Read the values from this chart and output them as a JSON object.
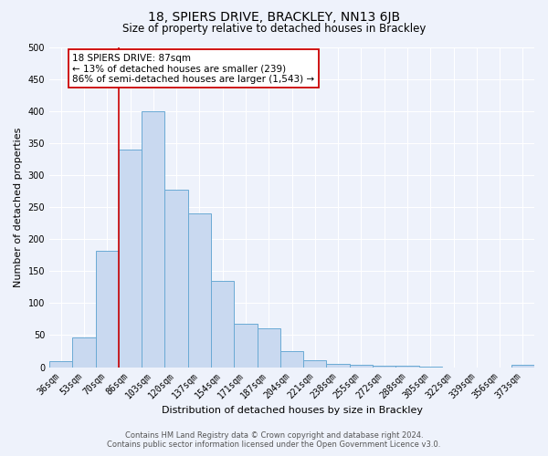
{
  "title": "18, SPIERS DRIVE, BRACKLEY, NN13 6JB",
  "subtitle": "Size of property relative to detached houses in Brackley",
  "xlabel": "Distribution of detached houses by size in Brackley",
  "ylabel": "Number of detached properties",
  "categories": [
    "36sqm",
    "53sqm",
    "70sqm",
    "86sqm",
    "103sqm",
    "120sqm",
    "137sqm",
    "154sqm",
    "171sqm",
    "187sqm",
    "204sqm",
    "221sqm",
    "238sqm",
    "255sqm",
    "272sqm",
    "288sqm",
    "305sqm",
    "322sqm",
    "339sqm",
    "356sqm",
    "373sqm"
  ],
  "values": [
    10,
    47,
    182,
    340,
    400,
    277,
    240,
    135,
    68,
    60,
    25,
    11,
    5,
    3,
    2,
    2,
    1,
    0,
    0,
    0,
    3
  ],
  "bar_color": "#c9d9f0",
  "bar_edge_color": "#6aaad4",
  "vline_color": "#cc0000",
  "annotation_line1": "18 SPIERS DRIVE: 87sqm",
  "annotation_line2": "← 13% of detached houses are smaller (239)",
  "annotation_line3": "86% of semi-detached houses are larger (1,543) →",
  "annotation_box_color": "#cc0000",
  "ylim": [
    0,
    500
  ],
  "yticks": [
    0,
    50,
    100,
    150,
    200,
    250,
    300,
    350,
    400,
    450,
    500
  ],
  "footer_line1": "Contains HM Land Registry data © Crown copyright and database right 2024.",
  "footer_line2": "Contains public sector information licensed under the Open Government Licence v3.0.",
  "bg_color": "#eef2fb",
  "grid_color": "#ffffff",
  "title_fontsize": 10,
  "subtitle_fontsize": 8.5,
  "axis_label_fontsize": 8,
  "tick_fontsize": 7,
  "annotation_fontsize": 7.5,
  "footer_fontsize": 6
}
